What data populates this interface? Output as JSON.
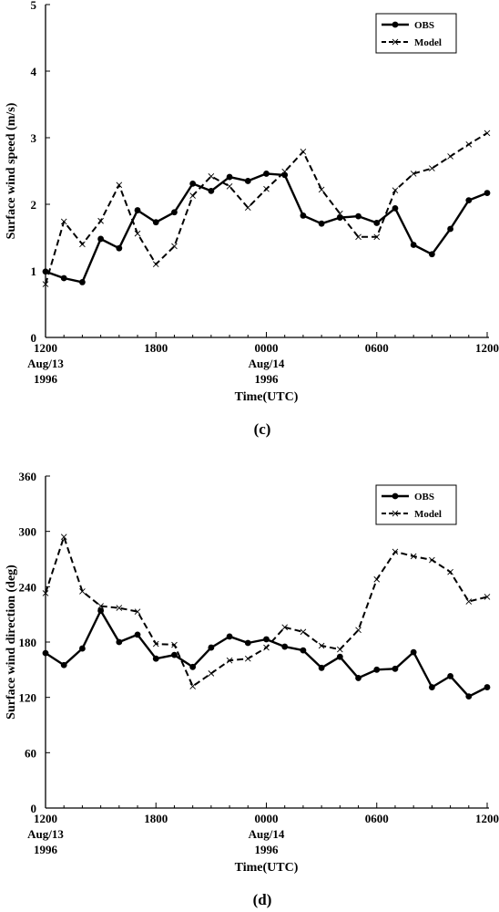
{
  "chart_data": [
    {
      "type": "line",
      "panel_label": "(c)",
      "ylabel": "Surface wind speed (m/s)",
      "xlabel": "Time(UTC)",
      "ylim": [
        0,
        5
      ],
      "yticks": [
        "0",
        "1",
        "2",
        "3",
        "4",
        "5"
      ],
      "x_range_hours": [
        0,
        24
      ],
      "xticks": [
        {
          "x": 0,
          "lines": [
            "1200",
            "Aug/13",
            "1996"
          ]
        },
        {
          "x": 6,
          "lines": [
            "1800"
          ]
        },
        {
          "x": 12,
          "lines": [
            "0000",
            "Aug/14",
            "1996"
          ]
        },
        {
          "x": 18,
          "lines": [
            "0600"
          ]
        },
        {
          "x": 24,
          "lines": [
            "1200"
          ]
        }
      ],
      "grid": false,
      "legend_position": "top-right",
      "series": [
        {
          "name": "OBS",
          "style": "solid-dot",
          "x": [
            0,
            1,
            2,
            3,
            4,
            5,
            6,
            7,
            8,
            9,
            10,
            11,
            12,
            13,
            14,
            15,
            16,
            17,
            18,
            19,
            20,
            21,
            22,
            23,
            24
          ],
          "values": [
            0.99,
            0.89,
            0.83,
            1.48,
            1.34,
            1.91,
            1.73,
            1.88,
            2.31,
            2.2,
            2.41,
            2.35,
            2.46,
            2.44,
            1.83,
            1.71,
            1.8,
            1.82,
            1.72,
            1.94,
            1.39,
            1.25,
            1.63,
            2.06,
            2.17
          ]
        },
        {
          "name": "Model",
          "style": "dashed-x",
          "x": [
            0,
            1,
            2,
            3,
            4,
            5,
            6,
            7,
            8,
            9,
            10,
            11,
            12,
            13,
            14,
            15,
            16,
            17,
            18,
            19,
            20,
            21,
            22,
            23,
            24
          ],
          "values": [
            0.8,
            1.74,
            1.4,
            1.75,
            2.29,
            1.56,
            1.1,
            1.37,
            2.13,
            2.42,
            2.27,
            1.95,
            2.23,
            2.49,
            2.79,
            2.22,
            1.86,
            1.51,
            1.51,
            2.21,
            2.46,
            2.54,
            2.72,
            2.9,
            3.07
          ]
        }
      ]
    },
    {
      "type": "line",
      "panel_label": "(d)",
      "ylabel": "Surface wind direction (deg)",
      "xlabel": "Time(UTC)",
      "ylim": [
        0,
        360
      ],
      "yticks": [
        "0",
        "60",
        "120",
        "180",
        "240",
        "300",
        "360"
      ],
      "x_range_hours": [
        0,
        24
      ],
      "xticks": [
        {
          "x": 0,
          "lines": [
            "1200",
            "Aug/13",
            "1996"
          ]
        },
        {
          "x": 6,
          "lines": [
            "1800"
          ]
        },
        {
          "x": 12,
          "lines": [
            "0000",
            "Aug/14",
            "1996"
          ]
        },
        {
          "x": 18,
          "lines": [
            "0600"
          ]
        },
        {
          "x": 24,
          "lines": [
            "1200"
          ]
        }
      ],
      "grid": false,
      "legend_position": "top-right",
      "series": [
        {
          "name": "OBS",
          "style": "solid-dot",
          "x": [
            0,
            1,
            2,
            3,
            4,
            5,
            6,
            7,
            8,
            9,
            10,
            11,
            12,
            13,
            14,
            15,
            16,
            17,
            18,
            19,
            20,
            21,
            22,
            23,
            24
          ],
          "values": [
            168,
            155,
            173,
            214,
            180,
            188,
            162,
            166,
            153,
            174,
            186,
            179,
            183,
            175,
            171,
            152,
            164,
            141,
            150,
            151,
            169,
            131,
            143,
            121,
            131
          ]
        },
        {
          "name": "Model",
          "style": "dashed-x",
          "x": [
            0,
            1,
            2,
            3,
            4,
            5,
            6,
            7,
            8,
            9,
            10,
            11,
            12,
            13,
            14,
            15,
            16,
            17,
            18,
            19,
            20,
            21,
            22,
            23,
            24
          ],
          "values": [
            233,
            294,
            235,
            219,
            217,
            213,
            178,
            177,
            132,
            146,
            160,
            162,
            174,
            196,
            191,
            176,
            172,
            193,
            248,
            278,
            273,
            269,
            256,
            224,
            229
          ]
        }
      ]
    }
  ]
}
